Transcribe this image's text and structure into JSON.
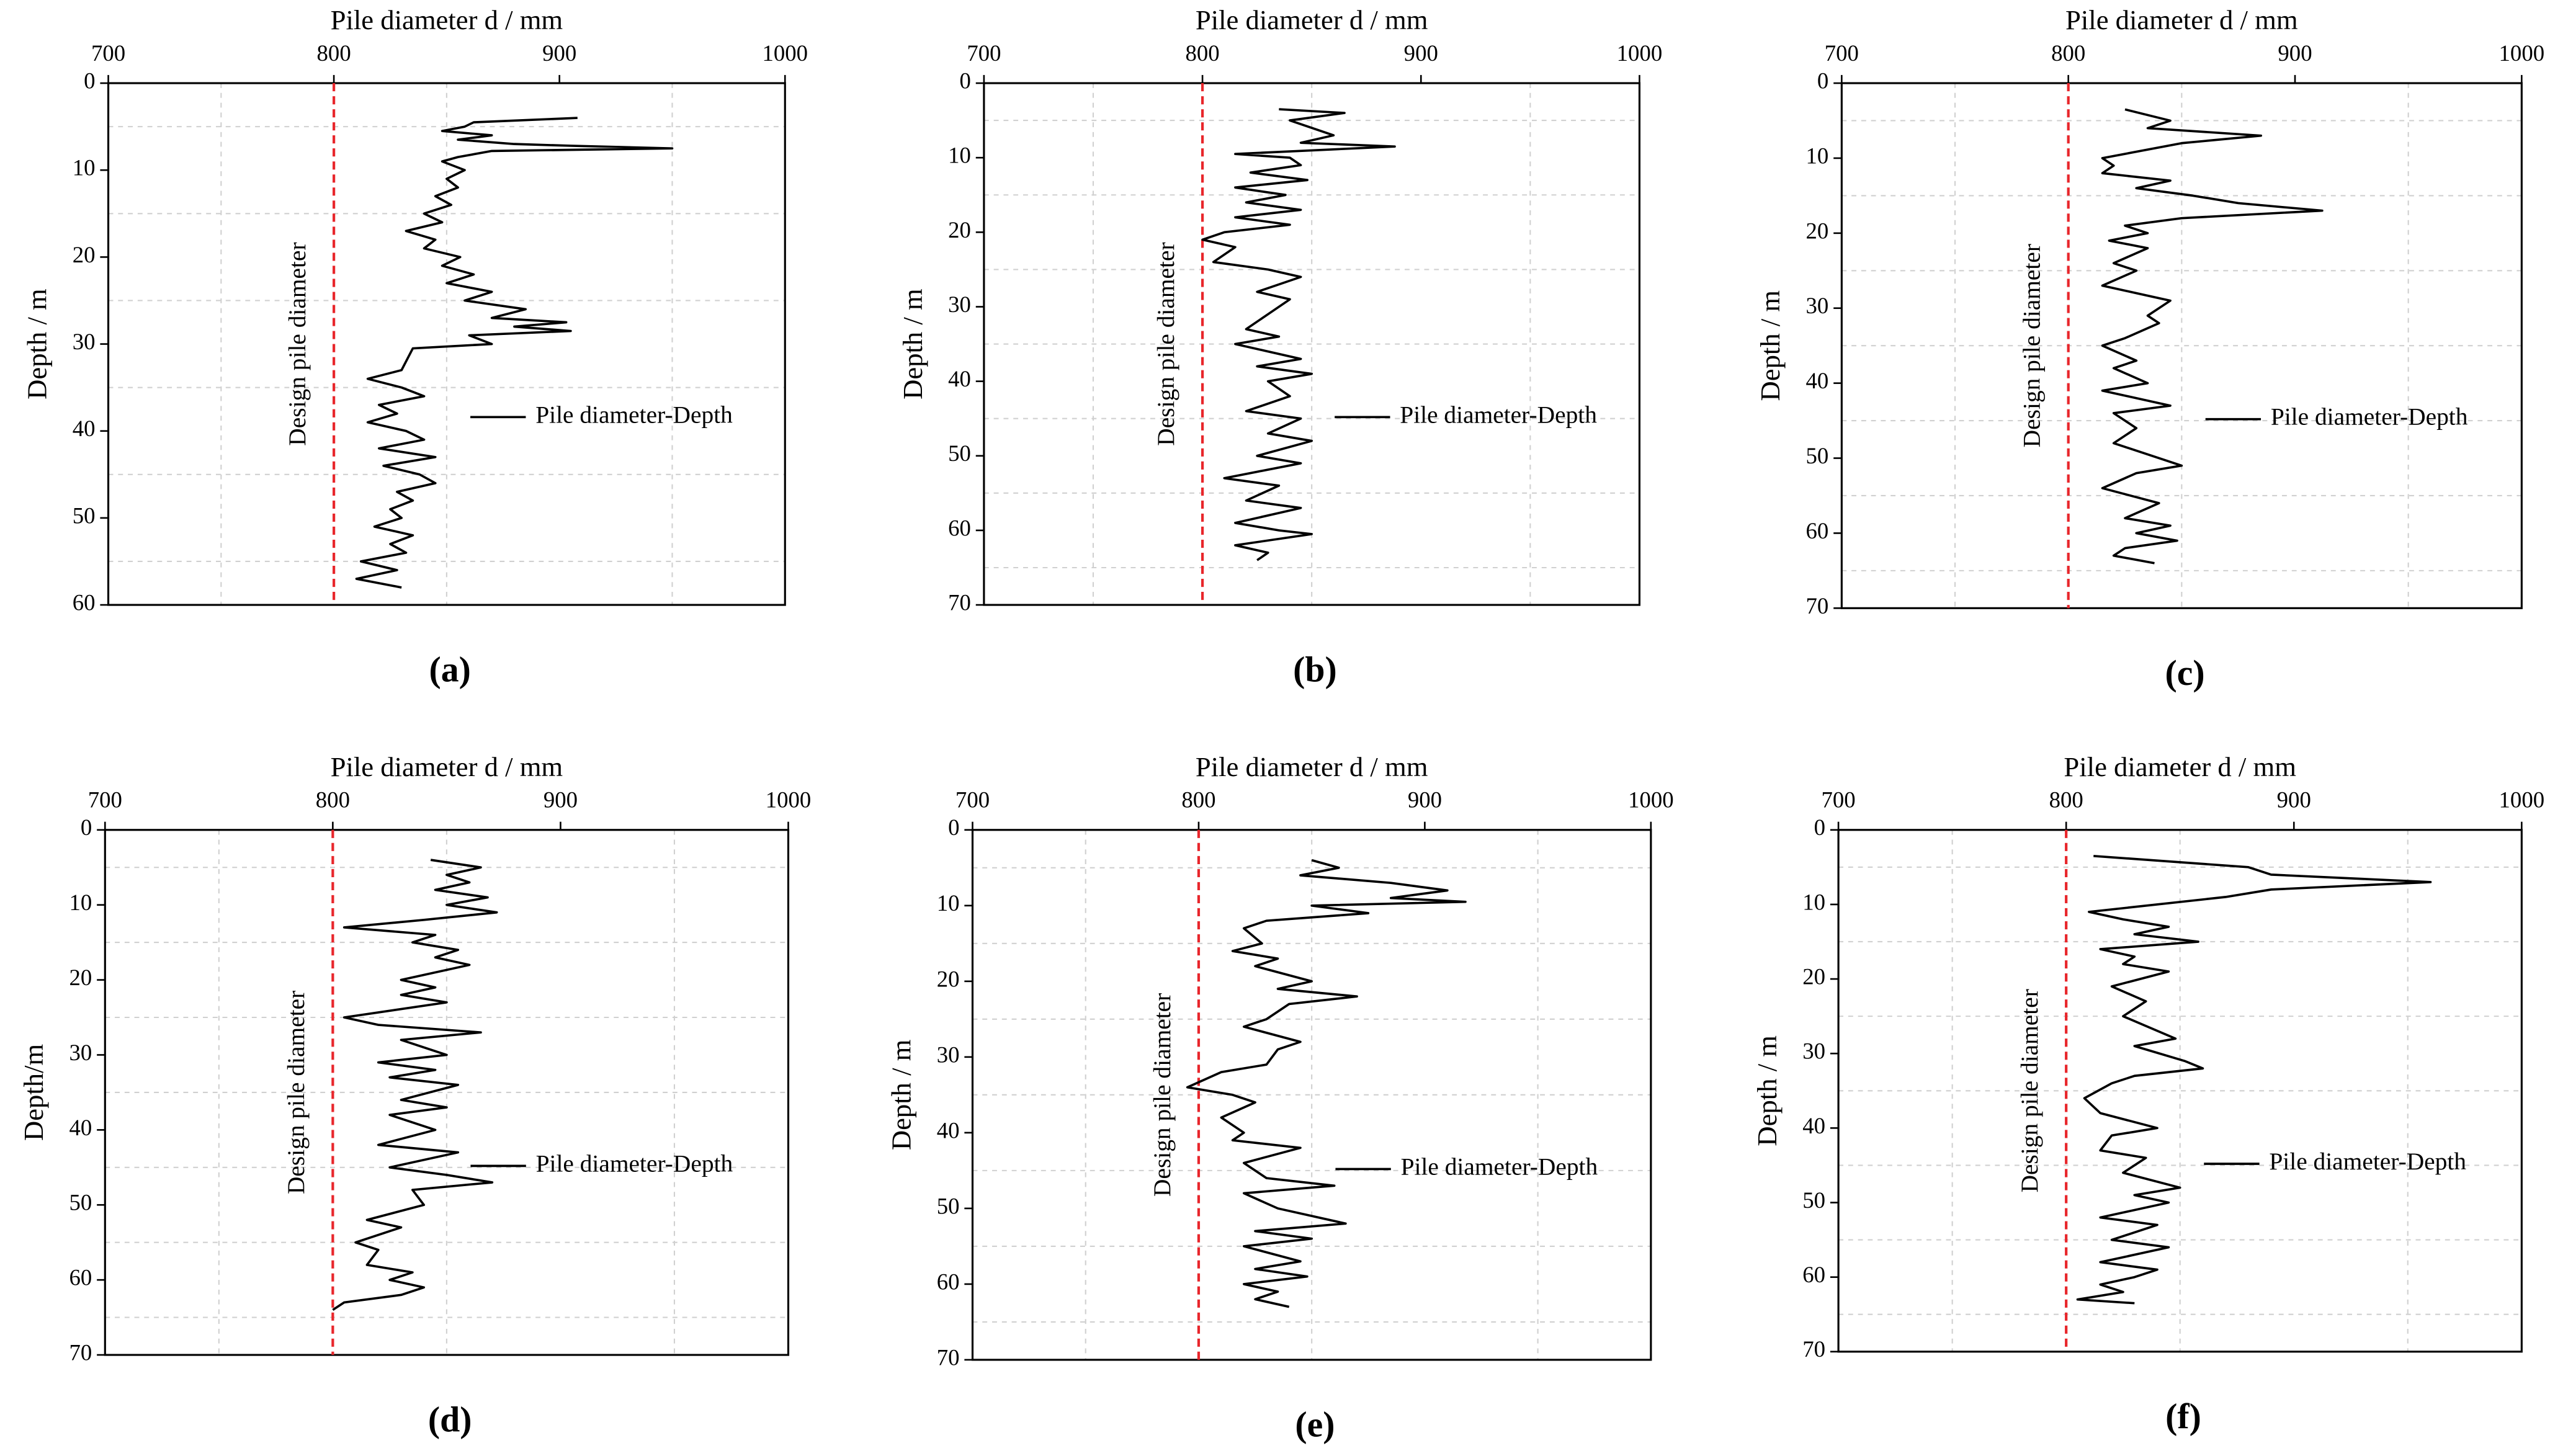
{
  "chart_data": [
    {
      "type": "line",
      "x_label": "Pile diameter d / mm",
      "y_label": "Depth / m",
      "caption": "(a)",
      "xlim": [
        700,
        1000
      ],
      "xticks": [
        700,
        800,
        900,
        1000
      ],
      "ylim": [
        0,
        60
      ],
      "yticks": [
        0,
        10,
        20,
        30,
        40,
        50,
        60
      ],
      "y_reversed": true,
      "grid": "minor",
      "reference_line": {
        "value": 800,
        "label": "Design pile diameter",
        "color": "#e8262b"
      },
      "series": [
        {
          "name": "Pile diameter-Depth",
          "color": "#000000",
          "x": [
            908,
            862,
            858,
            848,
            870,
            855,
            880,
            905,
            950,
            870,
            855,
            848,
            858,
            850,
            855,
            845,
            852,
            840,
            848,
            832,
            845,
            840,
            856,
            848,
            862,
            850,
            870,
            858,
            885,
            870,
            903,
            880,
            905,
            860,
            870,
            835,
            830,
            815,
            830,
            840,
            820,
            828,
            815,
            832,
            840,
            820,
            845,
            822,
            838,
            845,
            828,
            835,
            825,
            830,
            818,
            835,
            825,
            832,
            812,
            828,
            810,
            830
          ],
          "values": [
            4,
            4.5,
            5,
            5.5,
            6,
            6.5,
            7,
            7.2,
            7.5,
            7.8,
            8.5,
            9,
            10,
            11,
            12,
            13,
            14,
            15,
            16,
            17,
            18,
            19,
            20,
            21,
            22,
            23,
            24,
            25,
            26,
            27,
            27.5,
            28,
            28.5,
            29,
            30,
            30.5,
            33,
            34,
            35,
            36,
            37,
            38,
            39,
            40,
            41,
            42,
            43,
            44,
            45,
            46,
            47,
            48,
            49,
            50,
            51,
            52,
            53,
            54,
            55,
            56,
            57,
            58
          ]
        }
      ]
    },
    {
      "type": "line",
      "x_label": "Pile diameter d / mm",
      "y_label": "Depth / m",
      "caption": "(b)",
      "xlim": [
        700,
        1000
      ],
      "xticks": [
        700,
        800,
        900,
        1000
      ],
      "ylim": [
        0,
        70
      ],
      "yticks": [
        0,
        10,
        20,
        30,
        40,
        50,
        60,
        70
      ],
      "y_reversed": true,
      "grid": "minor",
      "reference_line": {
        "value": 800,
        "label": "Design pile diameter",
        "color": "#e8262b"
      },
      "series": [
        {
          "name": "Pile diameter-Depth",
          "color": "#000000",
          "x": [
            835,
            865,
            840,
            850,
            860,
            845,
            888,
            815,
            840,
            845,
            822,
            848,
            815,
            838,
            820,
            845,
            815,
            840,
            810,
            800,
            815,
            805,
            830,
            845,
            825,
            840,
            830,
            820,
            835,
            815,
            830,
            845,
            825,
            850,
            830,
            840,
            820,
            845,
            830,
            850,
            825,
            845,
            810,
            835,
            820,
            845,
            815,
            835,
            850,
            815,
            830,
            825
          ],
          "values": [
            3.5,
            4,
            5,
            6,
            7,
            8,
            8.5,
            9.5,
            10,
            11,
            12,
            13,
            14,
            15,
            16,
            17,
            18,
            19,
            20,
            21,
            22,
            24,
            25,
            26,
            28,
            29,
            31,
            33,
            34,
            35,
            36,
            37,
            38,
            39,
            40,
            42,
            44,
            45,
            47,
            48,
            50,
            51,
            53,
            54,
            56,
            57,
            59,
            60,
            60.5,
            62,
            63,
            64
          ]
        }
      ]
    },
    {
      "type": "line",
      "x_label": "Pile diameter d / mm",
      "y_label": "Depth / m",
      "caption": "(c)",
      "xlim": [
        700,
        1000
      ],
      "xticks": [
        700,
        800,
        900,
        1000
      ],
      "ylim": [
        0,
        70
      ],
      "yticks": [
        0,
        10,
        20,
        30,
        40,
        50,
        60,
        70
      ],
      "y_reversed": true,
      "grid": "minor",
      "reference_line": {
        "value": 800,
        "label": "Design pile diameter",
        "color": "#e8262b"
      },
      "series": [
        {
          "name": "Pile diameter-Depth",
          "color": "#000000",
          "x": [
            825,
            845,
            835,
            885,
            850,
            815,
            820,
            815,
            845,
            830,
            855,
            875,
            912,
            850,
            825,
            835,
            818,
            835,
            820,
            830,
            815,
            830,
            845,
            835,
            840,
            825,
            815,
            830,
            820,
            835,
            815,
            845,
            820,
            830,
            820,
            840,
            850,
            830,
            815,
            840,
            825,
            845,
            830,
            848,
            825,
            820,
            838
          ],
          "values": [
            3.5,
            5,
            6,
            7,
            8,
            10,
            11,
            12,
            13,
            14,
            15,
            16,
            17,
            18,
            19,
            20,
            21,
            22,
            24,
            25,
            27,
            28,
            29,
            31,
            32,
            34,
            35,
            37,
            38,
            40,
            41,
            43,
            44,
            46,
            48,
            50,
            51,
            52,
            54,
            56,
            58,
            59,
            60,
            61,
            62,
            63,
            64
          ]
        }
      ]
    },
    {
      "type": "line",
      "x_label": "Pile diameter d / mm",
      "y_label": "Depth/m",
      "caption": "(d)",
      "xlim": [
        700,
        1000
      ],
      "xticks": [
        700,
        800,
        900,
        1000
      ],
      "ylim": [
        0,
        70
      ],
      "yticks": [
        0,
        10,
        20,
        30,
        40,
        50,
        60,
        70
      ],
      "y_reversed": true,
      "grid": "minor",
      "reference_line": {
        "value": 800,
        "label": "Design pile diameter",
        "color": "#e8262b"
      },
      "series": [
        {
          "name": "Pile diameter-Depth",
          "color": "#000000",
          "x": [
            843,
            865,
            850,
            860,
            845,
            868,
            850,
            872,
            840,
            805,
            845,
            835,
            855,
            845,
            860,
            830,
            845,
            830,
            850,
            805,
            820,
            865,
            830,
            850,
            820,
            845,
            825,
            855,
            830,
            850,
            825,
            845,
            820,
            855,
            825,
            850,
            870,
            835,
            840,
            815,
            830,
            810,
            820,
            815,
            835,
            825,
            840,
            830,
            805,
            800
          ],
          "values": [
            4,
            5,
            6,
            7,
            8,
            9,
            10,
            11,
            12,
            13,
            14,
            15,
            16,
            17,
            18,
            20,
            21,
            22,
            23,
            25,
            26,
            27,
            28,
            30,
            31,
            32,
            33,
            34,
            36,
            37,
            38,
            40,
            42,
            43,
            45,
            46,
            47,
            48,
            50,
            52,
            53,
            55,
            56,
            58,
            59,
            60,
            61,
            62,
            63,
            64
          ]
        }
      ]
    },
    {
      "type": "line",
      "x_label": "Pile diameter d / mm",
      "y_label": "Depth / m",
      "caption": "(e)",
      "xlim": [
        700,
        1000
      ],
      "xticks": [
        700,
        800,
        900,
        1000
      ],
      "ylim": [
        0,
        70
      ],
      "yticks": [
        0,
        10,
        20,
        30,
        40,
        50,
        60,
        70
      ],
      "y_reversed": true,
      "grid": "minor",
      "reference_line": {
        "value": 800,
        "label": "Design pile diameter",
        "color": "#e8262b"
      },
      "series": [
        {
          "name": "Pile diameter-Depth",
          "color": "#000000",
          "x": [
            850,
            862,
            845,
            885,
            910,
            885,
            918,
            850,
            875,
            830,
            820,
            828,
            815,
            835,
            825,
            850,
            835,
            870,
            840,
            830,
            820,
            845,
            835,
            830,
            810,
            795,
            815,
            825,
            810,
            820,
            815,
            845,
            820,
            830,
            860,
            820,
            835,
            865,
            825,
            850,
            820,
            845,
            825,
            848,
            820,
            835,
            825,
            840
          ],
          "values": [
            4,
            5,
            6,
            7,
            8,
            9,
            9.5,
            10,
            11,
            12,
            13,
            15,
            16,
            17,
            18,
            20,
            21,
            22,
            23,
            25,
            26,
            28,
            29,
            31,
            32,
            34,
            35,
            36,
            38,
            40,
            41,
            42,
            44,
            46,
            47,
            48,
            50,
            52,
            53,
            54,
            55,
            57,
            58,
            59,
            60,
            61,
            62,
            63
          ]
        }
      ]
    },
    {
      "type": "line",
      "x_label": "Pile diameter d / mm",
      "y_label": "Depth / m",
      "caption": "(f)",
      "xlim": [
        700,
        1000
      ],
      "xticks": [
        700,
        800,
        900,
        1000
      ],
      "ylim": [
        0,
        70
      ],
      "yticks": [
        0,
        10,
        20,
        30,
        40,
        50,
        60,
        70
      ],
      "y_reversed": true,
      "grid": "minor",
      "reference_line": {
        "value": 800,
        "label": "Design pile diameter",
        "color": "#e8262b"
      },
      "series": [
        {
          "name": "Pile diameter-Depth",
          "color": "#000000",
          "x": [
            812,
            880,
            890,
            960,
            890,
            870,
            810,
            825,
            845,
            830,
            858,
            815,
            830,
            825,
            845,
            820,
            835,
            825,
            848,
            830,
            852,
            860,
            830,
            820,
            808,
            815,
            840,
            820,
            815,
            835,
            825,
            850,
            830,
            845,
            815,
            840,
            820,
            845,
            830,
            815,
            840,
            830,
            815,
            825,
            805,
            830
          ],
          "values": [
            3.5,
            5,
            6,
            7,
            8,
            9,
            11,
            12,
            13,
            14,
            15,
            16,
            17,
            18,
            19,
            21,
            23,
            25,
            28,
            29,
            31,
            32,
            33,
            34,
            36,
            38,
            40,
            41,
            43,
            44,
            46,
            48,
            49,
            50,
            52,
            53,
            55,
            56,
            57,
            58,
            59,
            60,
            61,
            62,
            63,
            63.5
          ]
        }
      ]
    }
  ]
}
